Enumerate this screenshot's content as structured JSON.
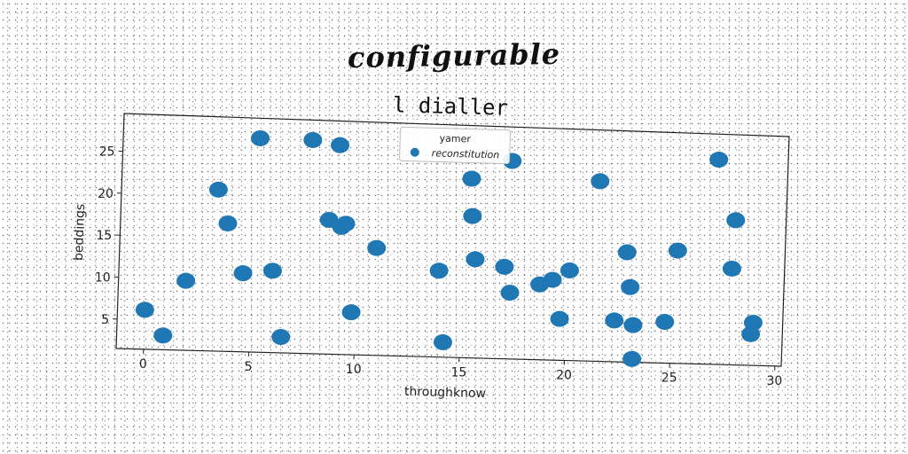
{
  "title": "configurable",
  "chart_data": {
    "type": "scatter",
    "subtitle": "l dialler",
    "xlabel": "throughknow",
    "ylabel": "beddings",
    "xlim": [
      -1.3,
      30.3
    ],
    "ylim": [
      1.5,
      29.5
    ],
    "xticks": [
      0,
      5,
      10,
      15,
      20,
      25,
      30
    ],
    "yticks": [
      5,
      10,
      15,
      20,
      25
    ],
    "color": "#1f77b4",
    "legend": {
      "title": "yamer",
      "position": "top-center"
    },
    "series": [
      {
        "name": "reconstitution",
        "points": [
          [
            0.0,
            6.2
          ],
          [
            0.9,
            3.2
          ],
          [
            1.9,
            9.8
          ],
          [
            3.3,
            20.8
          ],
          [
            3.8,
            16.8
          ],
          [
            4.6,
            10.9
          ],
          [
            5.2,
            27.1
          ],
          [
            6.0,
            11.3
          ],
          [
            6.5,
            3.4
          ],
          [
            7.7,
            27.1
          ],
          [
            8.6,
            17.6
          ],
          [
            9.0,
            26.6
          ],
          [
            9.2,
            16.8
          ],
          [
            9.4,
            17.2
          ],
          [
            9.8,
            6.6
          ],
          [
            10.9,
            14.4
          ],
          [
            13.9,
            11.9
          ],
          [
            14.2,
            3.3
          ],
          [
            15.3,
            23.1
          ],
          [
            15.4,
            18.6
          ],
          [
            15.6,
            13.4
          ],
          [
            17.0,
            12.6
          ],
          [
            17.2,
            25.4
          ],
          [
            17.3,
            9.5
          ],
          [
            18.7,
            10.6
          ],
          [
            19.3,
            11.2
          ],
          [
            19.7,
            6.5
          ],
          [
            20.1,
            12.4
          ],
          [
            21.4,
            23.3
          ],
          [
            22.3,
            6.5
          ],
          [
            22.8,
            14.8
          ],
          [
            23.0,
            10.6
          ],
          [
            23.2,
            6.0
          ],
          [
            23.2,
            1.9
          ],
          [
            24.7,
            6.5
          ],
          [
            25.2,
            15.2
          ],
          [
            27.0,
            26.4
          ],
          [
            27.8,
            13.2
          ],
          [
            27.9,
            19.1
          ],
          [
            28.8,
            5.3
          ],
          [
            28.9,
            6.7
          ]
        ]
      }
    ]
  }
}
